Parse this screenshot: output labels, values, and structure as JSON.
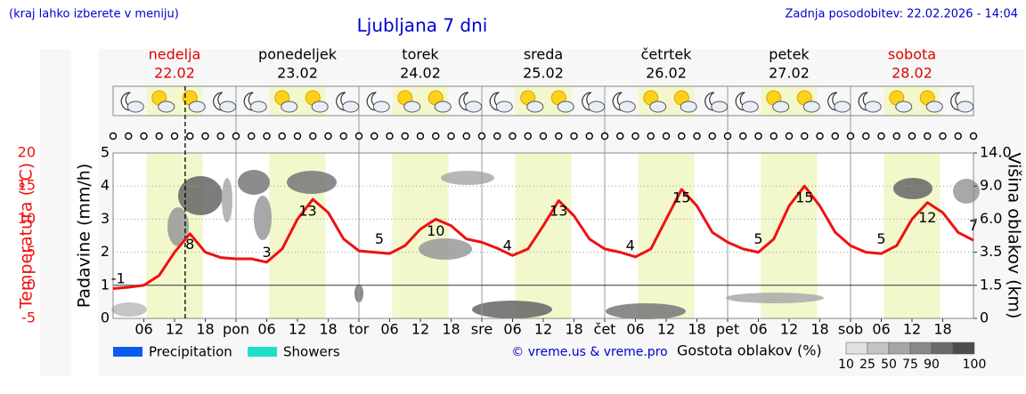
{
  "header": {
    "note": "(kraj lahko izberete v meniju)",
    "updated": "Zadnja posodobitev: 22.02.2026 - 14:04"
  },
  "chart_data": {
    "type": "line",
    "title": "Ljubljana 7 dni",
    "ylabel": "Temperatura (°C)",
    "precip_label": "Padavine (mm/h)",
    "cloud_height_label": "Višina oblakov (km)",
    "days": [
      {
        "name": "nedelja",
        "date": "22.02",
        "color": "#e00000"
      },
      {
        "name": "ponedeljek",
        "date": "23.02",
        "color": "#000000"
      },
      {
        "name": "torek",
        "date": "24.02",
        "color": "#000000"
      },
      {
        "name": "sreda",
        "date": "25.02",
        "color": "#000000"
      },
      {
        "name": "četrtek",
        "date": "26.02",
        "color": "#000000"
      },
      {
        "name": "petek",
        "date": "27.02",
        "color": "#000000"
      },
      {
        "name": "sobota",
        "date": "28.02",
        "color": "#e00000"
      }
    ],
    "xlim": [
      0,
      168
    ],
    "xticks": [
      {
        "value": 6,
        "label": "06"
      },
      {
        "value": 12,
        "label": "12"
      },
      {
        "value": 18,
        "label": "18"
      },
      {
        "value": 24,
        "label": "pon"
      },
      {
        "value": 30,
        "label": "06"
      },
      {
        "value": 36,
        "label": "12"
      },
      {
        "value": 42,
        "label": "18"
      },
      {
        "value": 48,
        "label": "tor"
      },
      {
        "value": 54,
        "label": "06"
      },
      {
        "value": 60,
        "label": "12"
      },
      {
        "value": 66,
        "label": "18"
      },
      {
        "value": 72,
        "label": "sre"
      },
      {
        "value": 78,
        "label": "06"
      },
      {
        "value": 84,
        "label": "12"
      },
      {
        "value": 90,
        "label": "18"
      },
      {
        "value": 96,
        "label": "čet"
      },
      {
        "value": 102,
        "label": "06"
      },
      {
        "value": 108,
        "label": "12"
      },
      {
        "value": 114,
        "label": "18"
      },
      {
        "value": 120,
        "label": "pet"
      },
      {
        "value": 126,
        "label": "06"
      },
      {
        "value": 132,
        "label": "12"
      },
      {
        "value": 138,
        "label": "18"
      },
      {
        "value": 144,
        "label": "sob"
      },
      {
        "value": 150,
        "label": "06"
      },
      {
        "value": 156,
        "label": "12"
      },
      {
        "value": 162,
        "label": "18"
      }
    ],
    "ylim": [
      -5,
      20
    ],
    "yticks": [
      -5,
      0,
      5,
      10,
      15,
      20
    ],
    "precip_ylim": [
      0,
      5
    ],
    "precip_yticks": [
      0,
      1,
      2,
      3,
      4,
      5
    ],
    "cloud_height_ticks": [
      0,
      {
        "value": 1.5,
        "label": "1.5"
      },
      {
        "value": 3.5,
        "label": "3.5"
      },
      {
        "value": 6,
        "label": "6.0"
      },
      {
        "value": 9,
        "label": "9.0"
      },
      {
        "value": 14,
        "label": "14.0"
      }
    ],
    "now": 14.07,
    "series": [
      {
        "name": "Temperatura",
        "color": "#ee1111",
        "x": [
          0,
          3,
          6,
          9,
          12,
          15,
          18,
          21,
          24,
          27,
          30,
          33,
          36,
          39,
          42,
          45,
          48,
          51,
          54,
          57,
          60,
          63,
          66,
          69,
          72,
          75,
          78,
          81,
          84,
          87,
          90,
          93,
          96,
          99,
          102,
          105,
          108,
          111,
          114,
          117,
          120,
          123,
          126,
          129,
          132,
          135,
          138,
          141,
          144,
          147,
          150,
          153,
          156,
          159,
          162,
          165,
          168
        ],
        "values": [
          -0.5,
          -0.3,
          0,
          1.5,
          5,
          7.8,
          5,
          4.2,
          4,
          4,
          3.5,
          5.5,
          10,
          13,
          11,
          7,
          5.2,
          5,
          4.8,
          6,
          8.5,
          10,
          9,
          7,
          6.5,
          5.6,
          4.5,
          5.5,
          9,
          12.8,
          10.5,
          7,
          5.5,
          5,
          4.3,
          5.5,
          10,
          14.5,
          12,
          8,
          6.5,
          5.5,
          5,
          7,
          12,
          15,
          12,
          8,
          6,
          5,
          4.8,
          6,
          10,
          12.5,
          11,
          8,
          6.8
        ]
      }
    ],
    "extremes": [
      {
        "x": 1,
        "value": -1
      },
      {
        "x": 15,
        "value": 8
      },
      {
        "x": 30,
        "value": 3
      },
      {
        "x": 38,
        "value": 13
      },
      {
        "x": 52,
        "value": 5
      },
      {
        "x": 63,
        "value": 10
      },
      {
        "x": 77,
        "value": 4
      },
      {
        "x": 87,
        "value": 13
      },
      {
        "x": 101,
        "value": 4
      },
      {
        "x": 111,
        "value": 15
      },
      {
        "x": 126,
        "value": 5
      },
      {
        "x": 135,
        "value": 15
      },
      {
        "x": 150,
        "value": 5
      },
      {
        "x": 159,
        "value": 12
      },
      {
        "x": 168,
        "value": 7
      }
    ],
    "legend": [
      {
        "name": "Precipitation",
        "color": "#0a5cf0"
      },
      {
        "name": "Showers",
        "color": "#1ee0c8"
      }
    ],
    "credit": "© vreme.us & vreme.pro",
    "density_label": "Gostota oblakov (%)",
    "density_scale": [
      {
        "value": 10,
        "color": "#e0e0e0"
      },
      {
        "value": 25,
        "color": "#c4c4c4"
      },
      {
        "value": 50,
        "color": "#a6a6a6"
      },
      {
        "value": 75,
        "color": "#888888"
      },
      {
        "value": 90,
        "color": "#6a6a6a"
      },
      {
        "value": 100,
        "color": "#4c4c4c"
      }
    ]
  }
}
